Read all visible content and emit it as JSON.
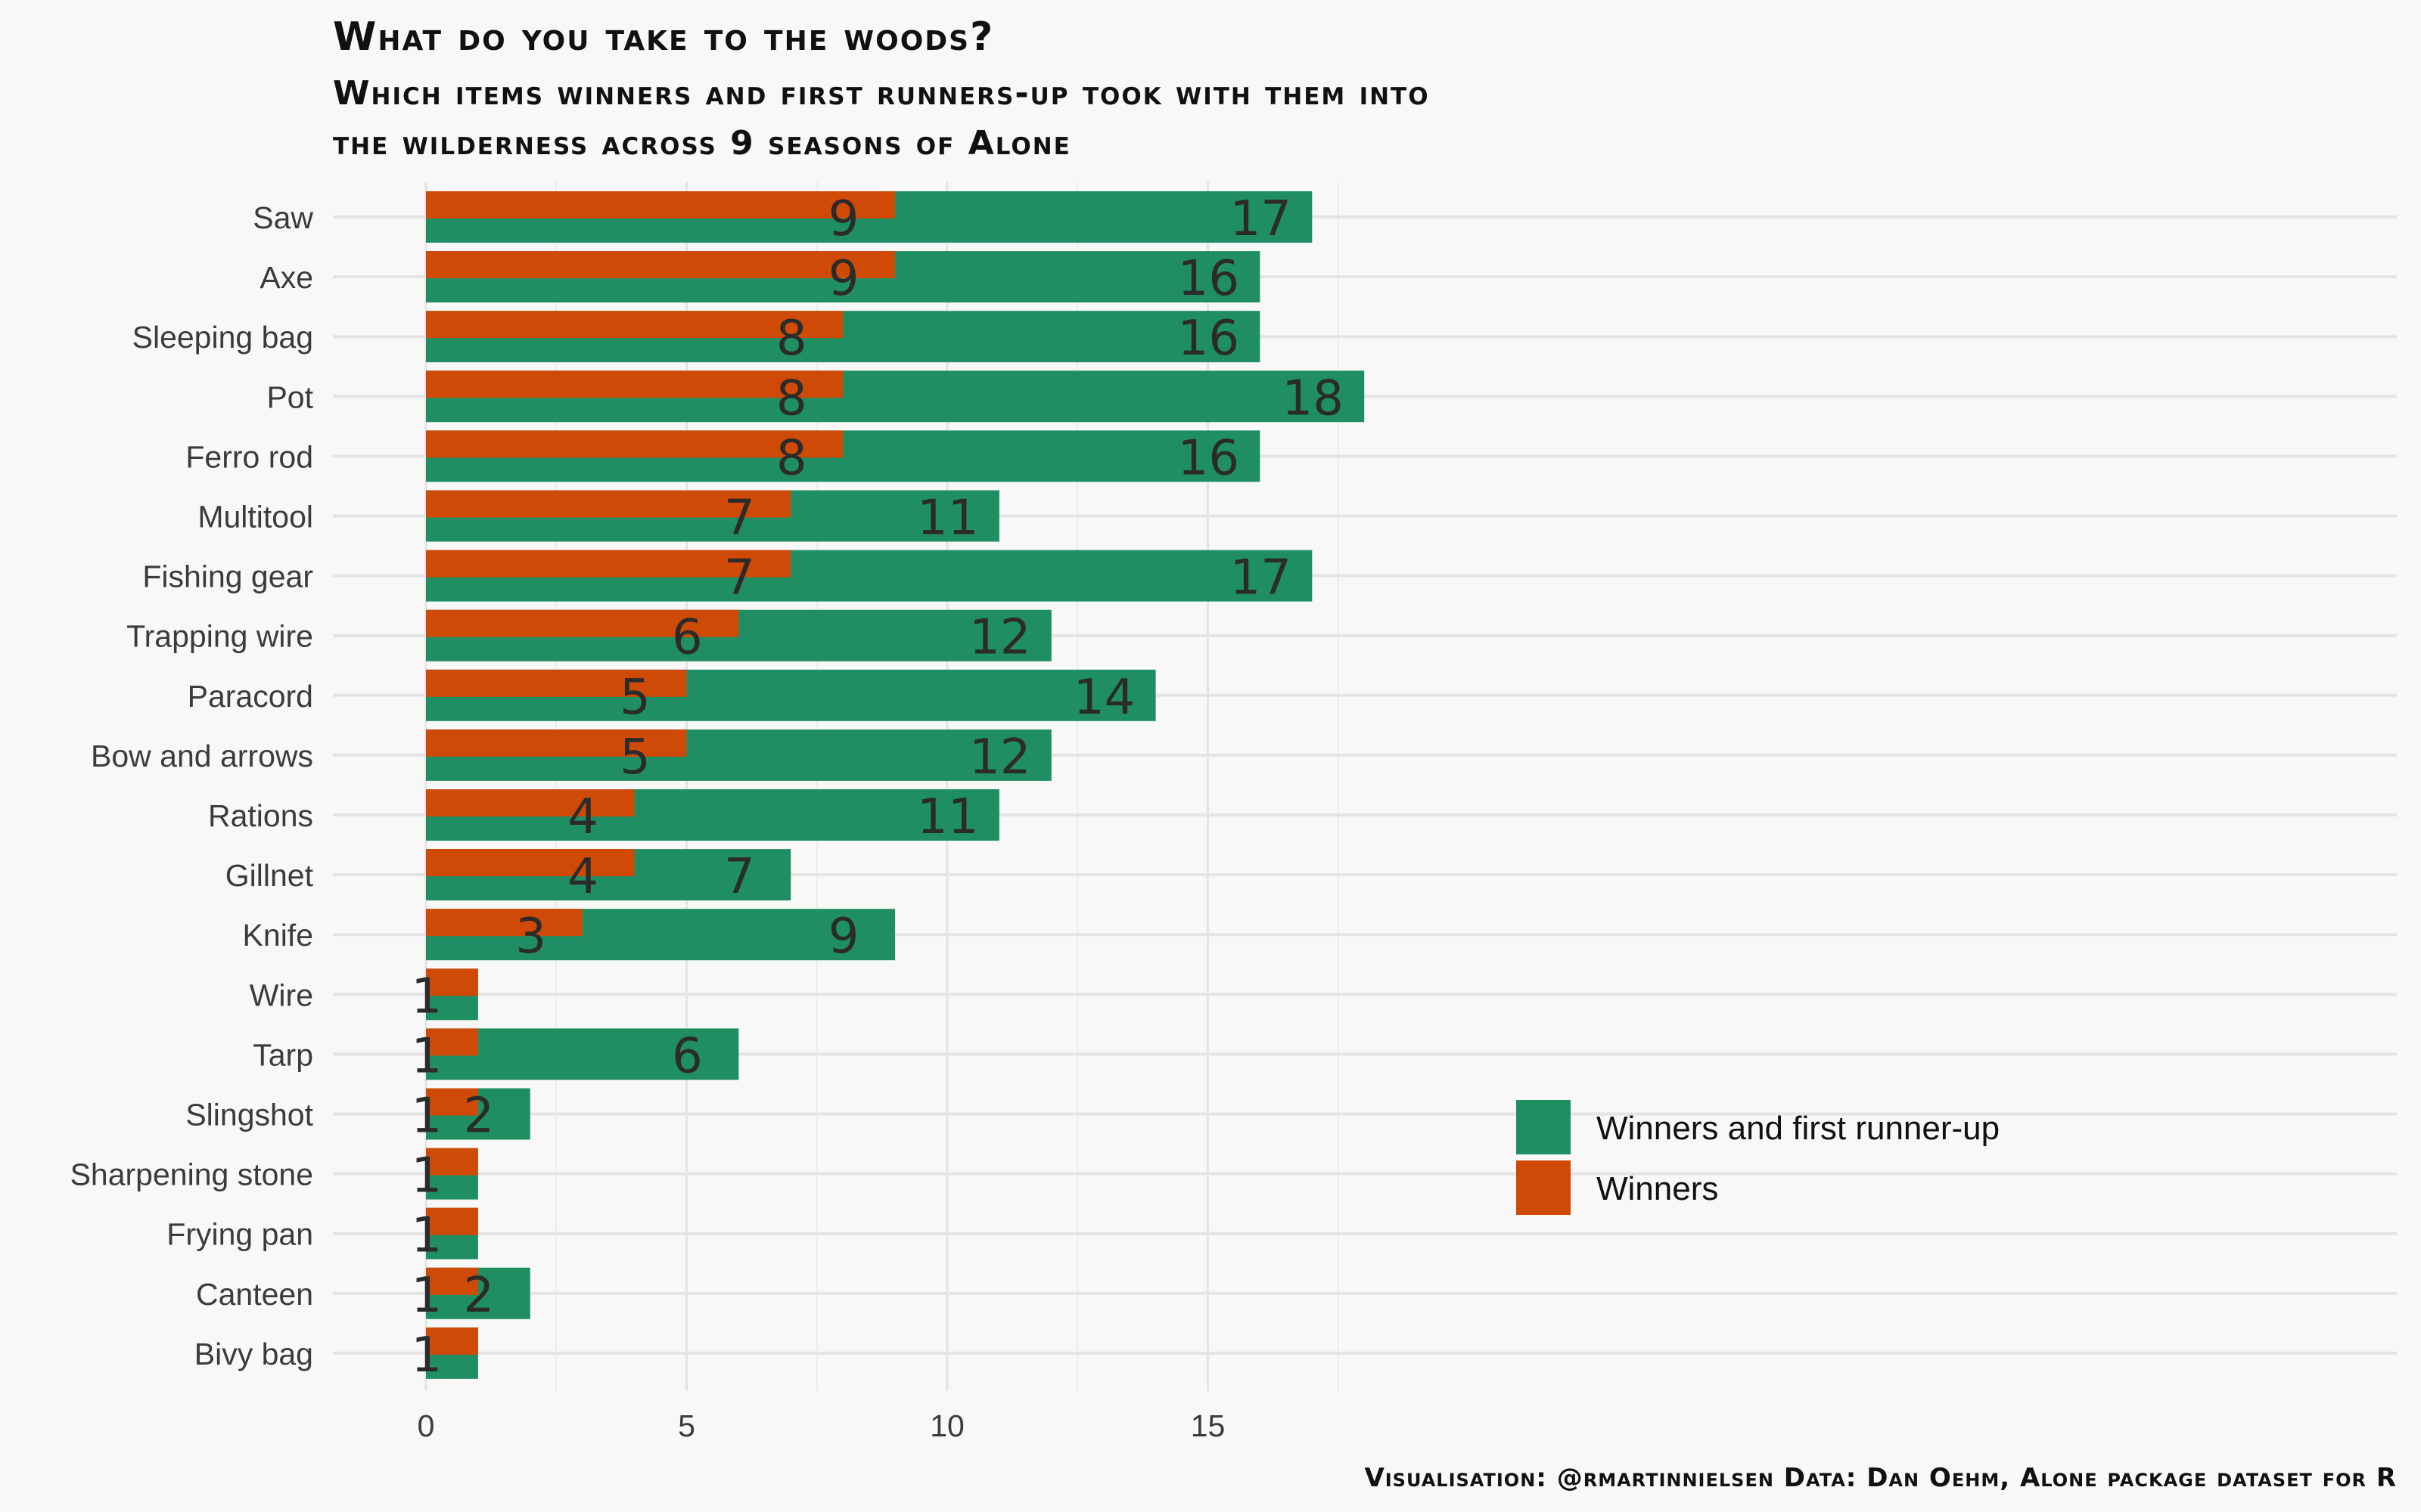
{
  "chart_data": {
    "type": "bar",
    "orientation": "horizontal",
    "title": "What do you take to the woods?",
    "subtitle_lines": [
      "Which items winners and first runners-up took with them into",
      "the wilderness across 9 seasons of Alone"
    ],
    "caption": "Visualisation: @rmartinnielsen Data: Dan Oehm, Alone package dataset for R",
    "categories": [
      "Saw",
      "Axe",
      "Sleeping bag",
      "Pot",
      "Ferro rod",
      "Multitool",
      "Fishing gear",
      "Trapping wire",
      "Paracord",
      "Bow and arrows",
      "Rations",
      "Gillnet",
      "Knife",
      "Wire",
      "Tarp",
      "Slingshot",
      "Sharpening stone",
      "Frying pan",
      "Canteen",
      "Bivy bag"
    ],
    "series": [
      {
        "name": "Winners",
        "color": "#d04a07",
        "values": [
          9,
          9,
          8,
          8,
          8,
          7,
          7,
          6,
          5,
          5,
          4,
          4,
          3,
          1,
          1,
          1,
          1,
          1,
          1,
          1
        ]
      },
      {
        "name": "Winners and first runner-up",
        "color": "#1f8f63",
        "values": [
          17,
          16,
          16,
          18,
          16,
          11,
          17,
          12,
          14,
          12,
          11,
          7,
          9,
          1,
          6,
          2,
          1,
          1,
          2,
          1
        ]
      }
    ],
    "x_ticks": [
      "0",
      "5",
      "10",
      "15"
    ],
    "xlim": [
      0,
      18.5
    ],
    "grid": true,
    "legend_position": "inside-bottom-right",
    "legend": [
      {
        "label": "Winners and first runner-up",
        "color": "#1f8f63"
      },
      {
        "label": "Winners",
        "color": "#d04a07"
      }
    ]
  }
}
